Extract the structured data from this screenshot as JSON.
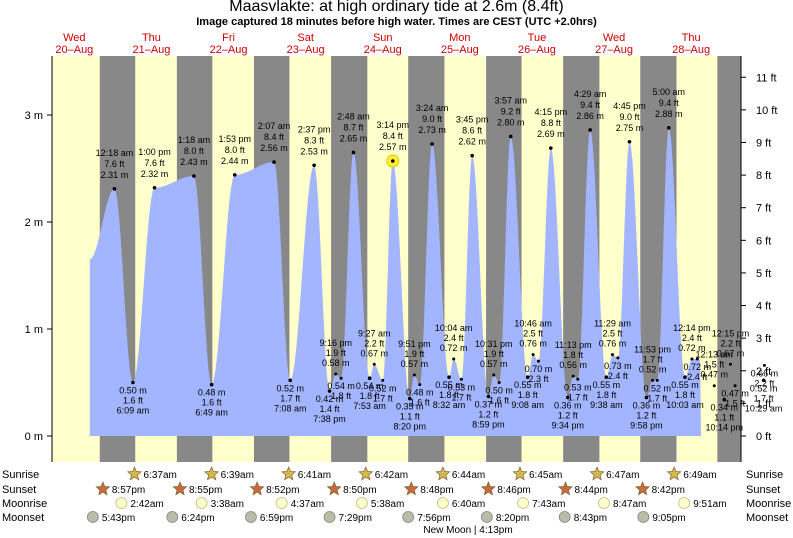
{
  "header": {
    "title": "Maasvlakte: at high  ordinary tide at 2.6m (8.4ft)",
    "subtitle": "Image captured 18 minutes before high water. Times are CEST (UTC +2.0hrs)"
  },
  "colors": {
    "day_bg": "#ffffcc",
    "night_bg": "#888888",
    "water": "#a3b5ff",
    "day_label": "#cc0000",
    "sun_icon": "#c8a040",
    "moon_icon": "#ffffcc",
    "moonset_icon": "#bbbbaa"
  },
  "chart_data": {
    "type": "area",
    "title": "Maasvlakte: at high  ordinary tide at 2.6m (8.4ft)",
    "left_axis": {
      "unit": "m",
      "ticks": [
        "0 m",
        "1 m",
        "2 m",
        "3 m"
      ],
      "values": [
        0,
        1,
        2,
        3
      ]
    },
    "right_axis": {
      "unit": "ft",
      "ticks": [
        "0 ft",
        "1 ft",
        "2 ft",
        "3 ft",
        "4 ft",
        "5 ft",
        "6 ft",
        "7 ft",
        "8 ft",
        "9 ft",
        "10 ft",
        "11 ft"
      ],
      "values": [
        0,
        1,
        2,
        3,
        4,
        5,
        6,
        7,
        8,
        9,
        10,
        11
      ]
    },
    "ylim_m": [
      -0.1,
      3.56
    ],
    "days": [
      {
        "dow": "Wed",
        "date": "20–Aug"
      },
      {
        "dow": "Thu",
        "date": "21–Aug"
      },
      {
        "dow": "Fri",
        "date": "22–Aug"
      },
      {
        "dow": "Sat",
        "date": "23–Aug"
      },
      {
        "dow": "Sun",
        "date": "24–Aug"
      },
      {
        "dow": "Mon",
        "date": "25–Aug"
      },
      {
        "dow": "Tue",
        "date": "26–Aug"
      },
      {
        "dow": "Wed",
        "date": "27–Aug"
      },
      {
        "dow": "Thu",
        "date": "28–Aug"
      }
    ],
    "high_tides": [
      {
        "time": "12:18 am",
        "ft": "7.6 ft",
        "m": "2.31 m",
        "t": 1.02,
        "h": 2.31
      },
      {
        "time": "1:00 pm",
        "ft": "7.6 ft",
        "m": "2.32 m",
        "t": 1.54,
        "h": 2.32
      },
      {
        "time": "1:18 am",
        "ft": "8.0 ft",
        "m": "2.43 m",
        "t": 2.05,
        "h": 2.43
      },
      {
        "time": "1:53 pm",
        "ft": "8.0 ft",
        "m": "2.44 m",
        "t": 2.58,
        "h": 2.44
      },
      {
        "time": "2:07 am",
        "ft": "8.4 ft",
        "m": "2.56 m",
        "t": 3.09,
        "h": 2.56
      },
      {
        "time": "2:37 pm",
        "ft": "8.3 ft",
        "m": "2.53 m",
        "t": 3.61,
        "h": 2.53
      },
      {
        "time": "2:48 am",
        "ft": "8.7 ft",
        "m": "2.65 m",
        "t": 4.12,
        "h": 2.65
      },
      {
        "time": "3:14 pm",
        "ft": "8.4 ft",
        "m": "2.57 m",
        "t": 4.63,
        "h": 2.57
      },
      {
        "time": "3:24 am",
        "ft": "9.0 ft",
        "m": "2.73 m",
        "t": 5.14,
        "h": 2.73
      },
      {
        "time": "3:45 pm",
        "ft": "8.6 ft",
        "m": "2.62 m",
        "t": 5.66,
        "h": 2.62
      },
      {
        "time": "3:57 am",
        "ft": "9.2 ft",
        "m": "2.80 m",
        "t": 6.16,
        "h": 2.8
      },
      {
        "time": "4:15 pm",
        "ft": "8.8 ft",
        "m": "2.69 m",
        "t": 6.68,
        "h": 2.69
      },
      {
        "time": "4:29 am",
        "ft": "9.4 ft",
        "m": "2.86 m",
        "t": 7.19,
        "h": 2.86
      },
      {
        "time": "4:45 pm",
        "ft": "9.0 ft",
        "m": "2.75 m",
        "t": 7.7,
        "h": 2.75
      },
      {
        "time": "5:00 am",
        "ft": "9.4 ft",
        "m": "2.88 m",
        "t": 8.21,
        "h": 2.88
      }
    ],
    "low_tides": [
      {
        "time": "6:09 am",
        "ft": "1.6 ft",
        "m": "0.50 m",
        "t": 1.26,
        "h": 0.5
      },
      {
        "time": "6:49 am",
        "ft": "1.6 ft",
        "m": "0.48 m",
        "t": 2.28,
        "h": 0.48
      },
      {
        "time": "7:08 am",
        "ft": "1.7 ft",
        "m": "0.52 m",
        "t": 3.3,
        "h": 0.52
      },
      {
        "time": "7:38 pm",
        "ft": "1.4 ft",
        "m": "0.42 m",
        "t": 3.81,
        "h": 0.42
      },
      {
        "time": "7:53 am",
        "ft": "1.8 ft",
        "m": "0.54 m",
        "t": 4.33,
        "h": 0.54
      },
      {
        "time": "8:20 pm",
        "ft": "1.1 ft",
        "m": "0.35 m",
        "t": 4.85,
        "h": 0.35
      },
      {
        "time": "8:32 am",
        "ft": "1.8 ft",
        "m": "0.55 m",
        "t": 5.36,
        "h": 0.55
      },
      {
        "time": "8:59 pm",
        "ft": "1.2 ft",
        "m": "0.37 m",
        "t": 5.87,
        "h": 0.37
      },
      {
        "time": "9:08 am",
        "ft": "1.8 ft",
        "m": "0.55 m",
        "t": 6.38,
        "h": 0.55
      },
      {
        "time": "9:34 pm",
        "ft": "1.2 ft",
        "m": "0.36 m",
        "t": 6.9,
        "h": 0.36
      },
      {
        "time": "9:38 am",
        "ft": "1.8 ft",
        "m": "0.55 m",
        "t": 7.4,
        "h": 0.55
      },
      {
        "time": "9:58 pm",
        "ft": "1.2 ft",
        "m": "0.36 m",
        "t": 7.92,
        "h": 0.36
      },
      {
        "time": "10:03 am",
        "ft": "1.8 ft",
        "m": "0.55 m",
        "t": 8.42,
        "h": 0.55
      },
      {
        "time": "10:14 pm",
        "ft": "1.1 ft",
        "m": "0.34 m",
        "t": 8.93,
        "h": 0.34
      },
      {
        "time": "10:29 am",
        "ft": "1.7 ft",
        "m": "0.52 m",
        "t": 9.44,
        "h": 0.52
      }
    ],
    "secondary_highs": [
      {
        "time": "9:16 pm",
        "ft": "1.9 ft",
        "m": "0.58 m",
        "t": 3.89,
        "h": 0.58
      },
      {
        "time": "9:27 am",
        "ft": "2.2 ft",
        "m": "0.67 m",
        "t": 4.39,
        "h": 0.67
      },
      {
        "time": "9:51 pm",
        "ft": "1.9 ft",
        "m": "0.57 m",
        "t": 4.91,
        "h": 0.57
      },
      {
        "time": "10:04 am",
        "ft": "2.4 ft",
        "m": "0.72 m",
        "t": 5.42,
        "h": 0.72
      },
      {
        "time": "10:31 pm",
        "ft": "1.9 ft",
        "m": "0.57 m",
        "t": 5.94,
        "h": 0.57
      },
      {
        "time": "10:46 am",
        "ft": "2.5 ft",
        "m": "0.76 m",
        "t": 6.45,
        "h": 0.76
      },
      {
        "time": "11:13 pm",
        "ft": "1.8 ft",
        "m": "0.56 m",
        "t": 6.97,
        "h": 0.56
      },
      {
        "time": "11:29 am",
        "ft": "2.5 ft",
        "m": "0.76 m",
        "t": 7.48,
        "h": 0.76
      },
      {
        "time": "11:53 pm",
        "ft": "1.7 ft",
        "m": "0.52 m",
        "t": 8.0,
        "h": 0.52
      },
      {
        "time": "12:14 pm",
        "ft": "2.4 ft",
        "m": "0.72 m",
        "t": 8.51,
        "h": 0.72
      },
      {
        "time": "12:13 am",
        "ft": "1.5 ft",
        "m": "0.47 m",
        "t": 8.8,
        "h": 0.47
      },
      {
        "time": "12:15 pm",
        "ft": "2.2 ft",
        "m": "0.67 m",
        "t": 9.01,
        "h": 0.67
      }
    ],
    "minor_lows": [
      {
        "ft": "1.8 ft",
        "m": "0.54 m",
        "t": 3.96,
        "h": 0.54
      },
      {
        "ft": "1.7 ft",
        "m": "0.52 m",
        "t": 4.5,
        "h": 0.52
      },
      {
        "ft": "1.6 ft",
        "m": "0.48 m",
        "t": 4.98,
        "h": 0.48
      },
      {
        "ft": "1.7 ft",
        "m": "0.53 m",
        "t": 5.52,
        "h": 0.53
      },
      {
        "ft": "1.6 ft",
        "m": "0.50 m",
        "t": 6.01,
        "h": 0.5
      },
      {
        "ft": "2.3 ft",
        "m": "0.70 m",
        "t": 6.52,
        "h": 0.7
      },
      {
        "ft": "1.7 ft",
        "m": "0.53 m",
        "t": 7.03,
        "h": 0.53
      },
      {
        "ft": "2.4 ft",
        "m": "0.73 m",
        "t": 7.55,
        "h": 0.73
      },
      {
        "ft": "1.7 ft",
        "m": "0.52 m",
        "t": 8.06,
        "h": 0.52
      },
      {
        "ft": "2.4 ft",
        "m": "0.72 m",
        "t": 8.58,
        "h": 0.72
      },
      {
        "ft": "1.5 ft",
        "m": "0.47 m",
        "t": 9.07,
        "h": 0.47
      },
      {
        "ft": "2.2 ft",
        "m": "0.66 m",
        "t": 9.45,
        "h": 0.66
      }
    ],
    "nights": [
      [
        0.83,
        1.29
      ],
      [
        1.83,
        2.29
      ],
      [
        2.83,
        3.29
      ],
      [
        3.83,
        4.3
      ],
      [
        4.83,
        5.3
      ],
      [
        5.84,
        6.3
      ],
      [
        6.84,
        7.31
      ],
      [
        7.84,
        8.31
      ],
      [
        8.84,
        9.31
      ]
    ],
    "now_marker": {
      "t": 4.63,
      "h": 2.57
    }
  },
  "almanac": {
    "row_labels": {
      "sunrise": "Sunrise",
      "sunset": "Sunset",
      "moonrise": "Moonrise",
      "moonset": "Moonset"
    },
    "sunrise": [
      {
        "time": "6:37am",
        "t": 1.28
      },
      {
        "time": "6:39am",
        "t": 2.28
      },
      {
        "time": "6:41am",
        "t": 3.28
      },
      {
        "time": "6:42am",
        "t": 4.28
      },
      {
        "time": "6:44am",
        "t": 5.28
      },
      {
        "time": "6:45am",
        "t": 6.28
      },
      {
        "time": "6:47am",
        "t": 7.28
      },
      {
        "time": "6:49am",
        "t": 8.28
      }
    ],
    "sunset": [
      {
        "time": "8:57pm",
        "t": 0.87
      },
      {
        "time": "8:55pm",
        "t": 1.87
      },
      {
        "time": "8:52pm",
        "t": 2.87
      },
      {
        "time": "8:50pm",
        "t": 3.87
      },
      {
        "time": "8:48pm",
        "t": 4.87
      },
      {
        "time": "8:46pm",
        "t": 5.87
      },
      {
        "time": "8:44pm",
        "t": 6.87
      },
      {
        "time": "8:42pm",
        "t": 7.87
      }
    ],
    "moonrise": [
      {
        "time": "2:42am",
        "t": 1.11
      },
      {
        "time": "3:38am",
        "t": 2.15
      },
      {
        "time": "4:37am",
        "t": 3.19
      },
      {
        "time": "5:38am",
        "t": 4.23
      },
      {
        "time": "6:40am",
        "t": 5.28
      },
      {
        "time": "7:43am",
        "t": 6.32
      },
      {
        "time": "8:47am",
        "t": 7.37
      },
      {
        "time": "9:51am",
        "t": 8.41
      }
    ],
    "moonset": [
      {
        "time": "5:43pm",
        "t": 0.74
      },
      {
        "time": "6:24pm",
        "t": 1.77
      },
      {
        "time": "6:59pm",
        "t": 2.79
      },
      {
        "time": "7:29pm",
        "t": 3.81
      },
      {
        "time": "7:56pm",
        "t": 4.83
      },
      {
        "time": "8:20pm",
        "t": 5.85
      },
      {
        "time": "8:43pm",
        "t": 6.86
      },
      {
        "time": "9:05pm",
        "t": 7.88
      }
    ],
    "new_moon": "New Moon | 4:13pm"
  }
}
